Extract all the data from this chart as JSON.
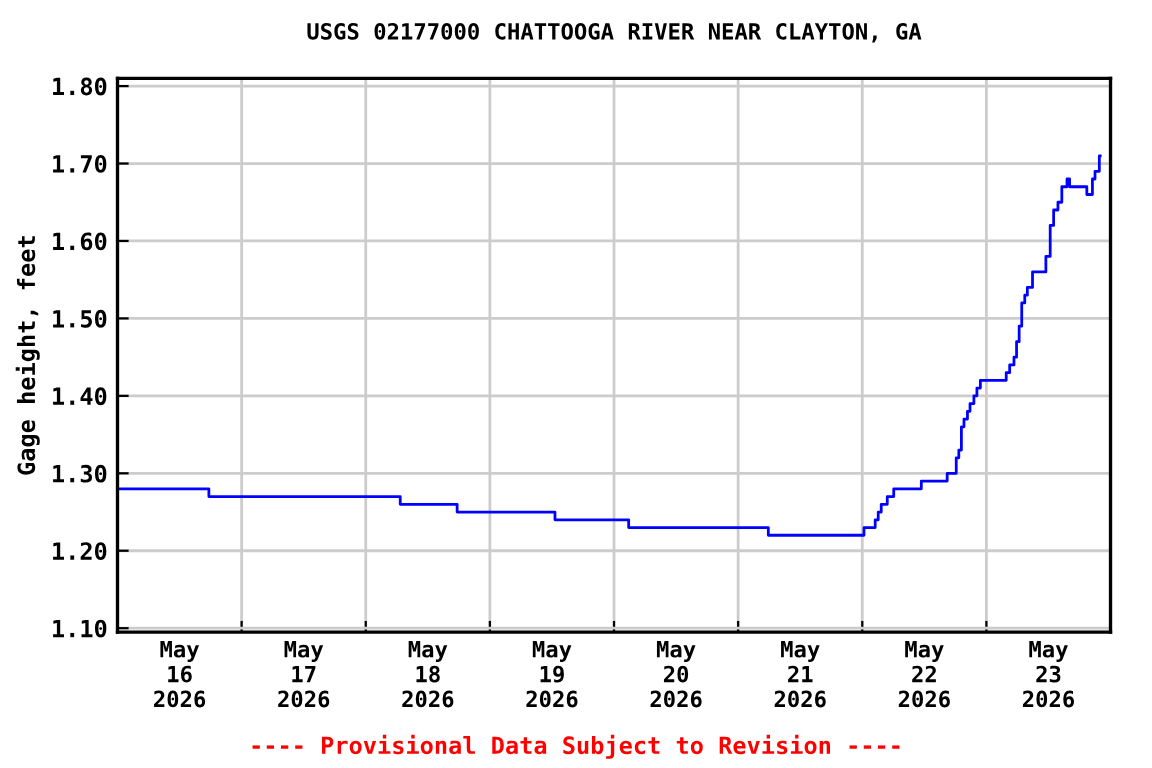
{
  "chart_data": {
    "type": "step",
    "title": "USGS 02177000 CHATTOOGA RIVER NEAR CLAYTON, GA",
    "ylabel": "Gage height, feet",
    "annotations": [
      "---- Provisional Data Subject to Revision ----"
    ],
    "xlim": [
      "2026-05-16T00:00",
      "2026-05-24T00:00"
    ],
    "xticks": [
      {
        "value": "2026-05-16T12:00",
        "label": "May\n16\n2026"
      },
      {
        "value": "2026-05-17T00:00",
        "label": null
      },
      {
        "value": "2026-05-17T12:00",
        "label": "May\n17\n2026"
      },
      {
        "value": "2026-05-18T00:00",
        "label": null
      },
      {
        "value": "2026-05-18T12:00",
        "label": "May\n18\n2026"
      },
      {
        "value": "2026-05-19T00:00",
        "label": null
      },
      {
        "value": "2026-05-19T12:00",
        "label": "May\n19\n2026"
      },
      {
        "value": "2026-05-20T00:00",
        "label": null
      },
      {
        "value": "2026-05-20T12:00",
        "label": "May\n20\n2026"
      },
      {
        "value": "2026-05-21T00:00",
        "label": null
      },
      {
        "value": "2026-05-21T12:00",
        "label": "May\n21\n2026"
      },
      {
        "value": "2026-05-22T00:00",
        "label": null
      },
      {
        "value": "2026-05-22T12:00",
        "label": "May\n22\n2026"
      },
      {
        "value": "2026-05-23T00:00",
        "label": null
      },
      {
        "value": "2026-05-23T12:00",
        "label": "May\n23\n2026"
      }
    ],
    "ylim": [
      1.095,
      1.81
    ],
    "yticks": [
      {
        "value": 1.1,
        "label": "1.10"
      },
      {
        "value": 1.2,
        "label": "1.20"
      },
      {
        "value": 1.3,
        "label": "1.30"
      },
      {
        "value": 1.4,
        "label": "1.40"
      },
      {
        "value": 1.5,
        "label": "1.50"
      },
      {
        "value": 1.6,
        "label": "1.60"
      },
      {
        "value": 1.7,
        "label": "1.70"
      },
      {
        "value": 1.8,
        "label": "1.80"
      }
    ],
    "grid": true,
    "legend": false,
    "series": [
      {
        "color": "#0000ff",
        "x": [
          "2026-05-16T00:00",
          "2026-05-16T17:40",
          "2026-05-18T06:40",
          "2026-05-18T17:40",
          "2026-05-19T12:35",
          "2026-05-20T02:50",
          "2026-05-21T05:50",
          "2026-05-22T00:20",
          "2026-05-22T02:30",
          "2026-05-22T03:05",
          "2026-05-22T03:40",
          "2026-05-22T04:50",
          "2026-05-22T06:05",
          "2026-05-22T11:25",
          "2026-05-22T16:25",
          "2026-05-22T18:10",
          "2026-05-22T18:40",
          "2026-05-22T19:10",
          "2026-05-22T19:40",
          "2026-05-22T20:20",
          "2026-05-22T20:50",
          "2026-05-22T21:35",
          "2026-05-22T22:10",
          "2026-05-22T22:50",
          "2026-05-23T03:50",
          "2026-05-23T04:30",
          "2026-05-23T05:20",
          "2026-05-23T05:50",
          "2026-05-23T06:20",
          "2026-05-23T06:50",
          "2026-05-23T07:25",
          "2026-05-23T07:55",
          "2026-05-23T08:55",
          "2026-05-23T11:30",
          "2026-05-23T12:20",
          "2026-05-23T13:00",
          "2026-05-23T13:50",
          "2026-05-23T14:35",
          "2026-05-23T15:35",
          "2026-05-23T16:05",
          "2026-05-23T19:25",
          "2026-05-23T20:30",
          "2026-05-23T21:00",
          "2026-05-23T21:50",
          "2026-05-23T22:00"
        ],
        "values": [
          1.28,
          1.27,
          1.26,
          1.25,
          1.24,
          1.23,
          1.22,
          1.23,
          1.24,
          1.25,
          1.26,
          1.27,
          1.28,
          1.29,
          1.3,
          1.32,
          1.33,
          1.36,
          1.37,
          1.38,
          1.39,
          1.4,
          1.41,
          1.42,
          1.43,
          1.44,
          1.45,
          1.47,
          1.49,
          1.52,
          1.53,
          1.54,
          1.56,
          1.58,
          1.62,
          1.64,
          1.65,
          1.67,
          1.68,
          1.67,
          1.66,
          1.68,
          1.69,
          1.71,
          1.71
        ]
      }
    ]
  }
}
